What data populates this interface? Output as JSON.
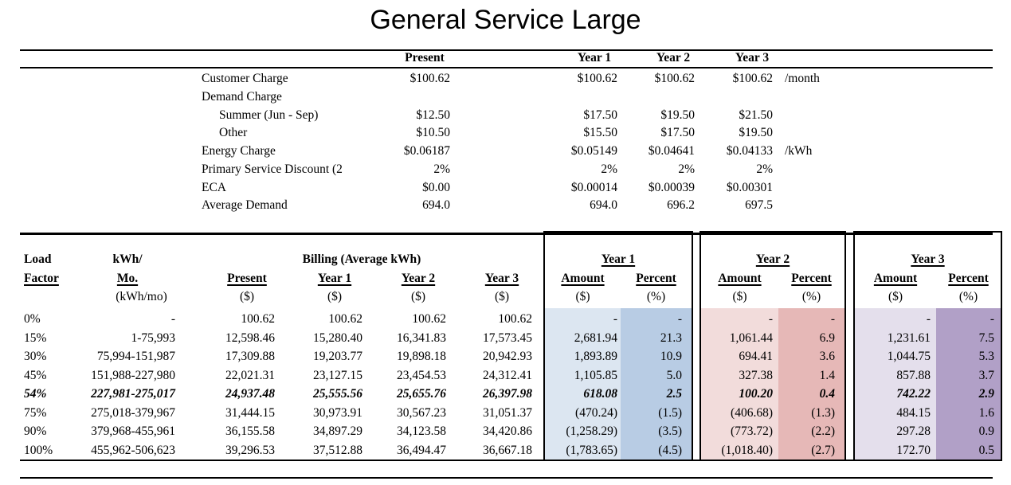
{
  "title": "General Service Large",
  "rate_table": {
    "col_headers": [
      "Present",
      "Year 1",
      "Year 2",
      "Year 3"
    ],
    "rows": [
      {
        "label": "Customer Charge",
        "indent": 0,
        "values": [
          "$100.62",
          "$100.62",
          "$100.62",
          "$100.62"
        ],
        "unit": "/month"
      },
      {
        "label": "Demand Charge",
        "indent": 0,
        "values": [
          "",
          "",
          "",
          ""
        ],
        "unit": ""
      },
      {
        "label": "Summer (Jun - Sep)",
        "indent": 1,
        "values": [
          "$12.50",
          "$17.50",
          "$19.50",
          "$21.50"
        ],
        "unit": ""
      },
      {
        "label": "Other",
        "indent": 1,
        "values": [
          "$10.50",
          "$15.50",
          "$17.50",
          "$19.50"
        ],
        "unit": ""
      },
      {
        "label": "Energy Charge",
        "indent": 0,
        "values": [
          "$0.06187",
          "$0.05149",
          "$0.04641",
          "$0.04133"
        ],
        "unit": "/kWh"
      },
      {
        "label": "Primary Service Discount (2",
        "indent": 0,
        "values": [
          "2%",
          "2%",
          "2%",
          "2%"
        ],
        "unit": ""
      },
      {
        "label": "ECA",
        "indent": 0,
        "values": [
          "$0.00",
          "$0.00014",
          "$0.00039",
          "$0.00301"
        ],
        "unit": ""
      },
      {
        "label": "Average Demand",
        "indent": 0,
        "values": [
          "694.0",
          "694.0",
          "696.2",
          "697.5"
        ],
        "unit": ""
      }
    ]
  },
  "billing_table": {
    "load_header_line1": "Load",
    "load_header_line2": "Factor",
    "kwh_header_line1": "kWh/",
    "kwh_header_line2": "Mo.",
    "kwh_header_line3": "(kWh/mo)",
    "billing_group_header": "Billing (Average kWh)",
    "billing_col_headers": [
      "Present",
      "Year 1",
      "Year 2",
      "Year 3"
    ],
    "billing_col_units": [
      "($)",
      "($)",
      "($)",
      "($)"
    ],
    "year_groups": [
      {
        "label": "Year 1",
        "amount_header": "Amount",
        "percent_header": "Percent",
        "amount_unit": "($)",
        "percent_unit": "(%)",
        "amount_bg": "#DCE6F1",
        "percent_bg": "#B8CCE4"
      },
      {
        "label": "Year 2",
        "amount_header": "Amount",
        "percent_header": "Percent",
        "amount_unit": "($)",
        "percent_unit": "(%)",
        "amount_bg": "#F2DCDB",
        "percent_bg": "#E6B8B7"
      },
      {
        "label": "Year 3",
        "amount_header": "Amount",
        "percent_header": "Percent",
        "amount_unit": "($)",
        "percent_unit": "(%)",
        "amount_bg": "#E4DFEC",
        "percent_bg": "#B1A0C7"
      }
    ],
    "rows": [
      {
        "load_factor": "0%",
        "kwh_mo": "-",
        "billing": [
          "100.62",
          "100.62",
          "100.62",
          "100.62"
        ],
        "amounts": [
          "-",
          "-",
          "-"
        ],
        "percents": [
          "-",
          "-",
          "-"
        ],
        "emphasis": false
      },
      {
        "load_factor": "15%",
        "kwh_mo": "1-75,993",
        "billing": [
          "12,598.46",
          "15,280.40",
          "16,341.83",
          "17,573.45"
        ],
        "amounts": [
          "2,681.94",
          "1,061.44",
          "1,231.61"
        ],
        "percents": [
          "21.3",
          "6.9",
          "7.5"
        ],
        "emphasis": false
      },
      {
        "load_factor": "30%",
        "kwh_mo": "75,994-151,987",
        "billing": [
          "17,309.88",
          "19,203.77",
          "19,898.18",
          "20,942.93"
        ],
        "amounts": [
          "1,893.89",
          "694.41",
          "1,044.75"
        ],
        "percents": [
          "10.9",
          "3.6",
          "5.3"
        ],
        "emphasis": false
      },
      {
        "load_factor": "45%",
        "kwh_mo": "151,988-227,980",
        "billing": [
          "22,021.31",
          "23,127.15",
          "23,454.53",
          "24,312.41"
        ],
        "amounts": [
          "1,105.85",
          "327.38",
          "857.88"
        ],
        "percents": [
          "5.0",
          "1.4",
          "3.7"
        ],
        "emphasis": false
      },
      {
        "load_factor": "54%",
        "kwh_mo": "227,981-275,017",
        "billing": [
          "24,937.48",
          "25,555.56",
          "25,655.76",
          "26,397.98"
        ],
        "amounts": [
          "618.08",
          "100.20",
          "742.22"
        ],
        "percents": [
          "2.5",
          "0.4",
          "2.9"
        ],
        "emphasis": true
      },
      {
        "load_factor": "75%",
        "kwh_mo": "275,018-379,967",
        "billing": [
          "31,444.15",
          "30,973.91",
          "30,567.23",
          "31,051.37"
        ],
        "amounts": [
          "(470.24)",
          "(406.68)",
          "484.15"
        ],
        "percents": [
          "(1.5)",
          "(1.3)",
          "1.6"
        ],
        "emphasis": false
      },
      {
        "load_factor": "90%",
        "kwh_mo": "379,968-455,961",
        "billing": [
          "36,155.58",
          "34,897.29",
          "34,123.58",
          "34,420.86"
        ],
        "amounts": [
          "(1,258.29)",
          "(773.72)",
          "297.28"
        ],
        "percents": [
          "(3.5)",
          "(2.2)",
          "0.9"
        ],
        "emphasis": false
      },
      {
        "load_factor": "100%",
        "kwh_mo": "455,962-506,623",
        "billing": [
          "39,296.53",
          "37,512.88",
          "36,494.47",
          "36,667.18"
        ],
        "amounts": [
          "(1,783.65)",
          "(1,018.40)",
          "172.70"
        ],
        "percents": [
          "(4.5)",
          "(2.7)",
          "0.5"
        ],
        "emphasis": false
      }
    ]
  }
}
